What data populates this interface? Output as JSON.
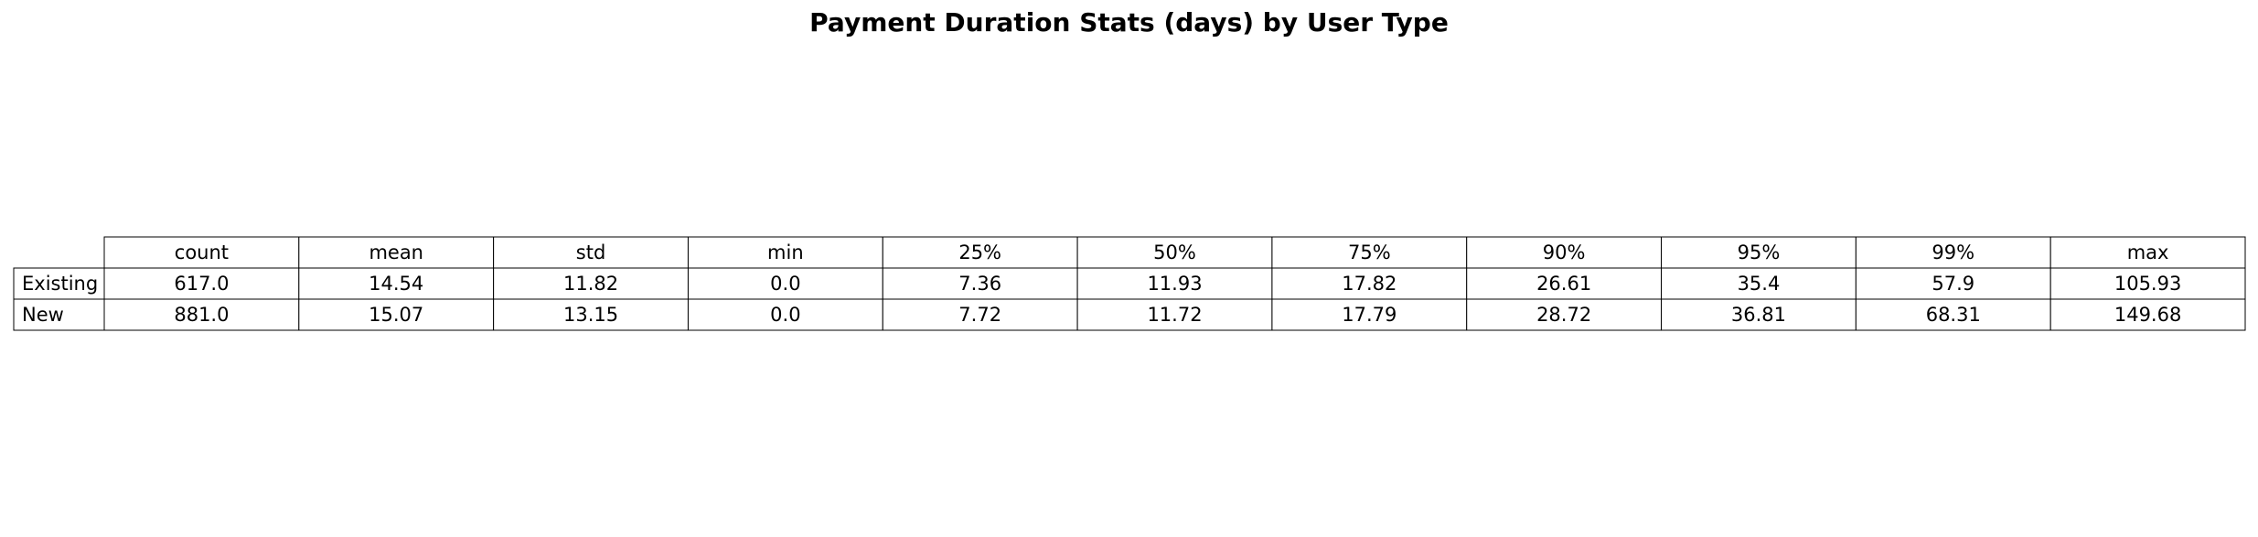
{
  "chart_data": {
    "type": "table",
    "title": "Payment Duration Stats (days) by User Type",
    "columns": [
      "count",
      "mean",
      "std",
      "min",
      "25%",
      "50%",
      "75%",
      "90%",
      "95%",
      "99%",
      "max"
    ],
    "rows": [
      {
        "label": "Existing",
        "values": [
          "617.0",
          "14.54",
          "11.82",
          "0.0",
          "7.36",
          "11.93",
          "17.82",
          "26.61",
          "35.4",
          "57.9",
          "105.93"
        ]
      },
      {
        "label": "New",
        "values": [
          "881.0",
          "15.07",
          "13.15",
          "0.0",
          "7.72",
          "11.72",
          "17.79",
          "28.72",
          "36.81",
          "68.31",
          "149.68"
        ]
      }
    ]
  }
}
